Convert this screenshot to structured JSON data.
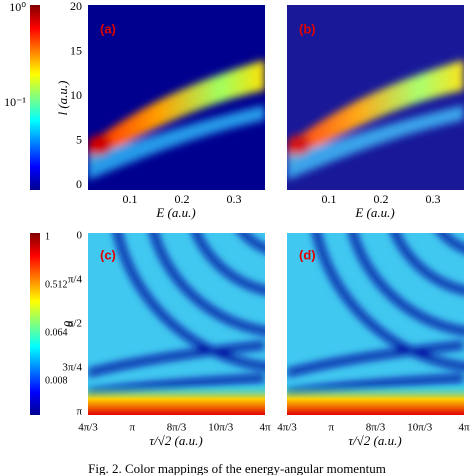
{
  "colorbars": [
    {
      "ticks": [
        "10⁰",
        "10⁻¹"
      ]
    },
    {
      "label": "θ",
      "ticks": [
        "1",
        "0.512",
        "0.064",
        "0.008"
      ]
    }
  ],
  "top_row": {
    "y_label": "l (a.u.)",
    "x_label": "E (a.u.)",
    "y_ticks": [
      "0",
      "5",
      "10",
      "15",
      "20"
    ],
    "x_ticks": [
      "0.1",
      "0.2",
      "0.3"
    ],
    "panels": [
      "(a)",
      "(b)"
    ]
  },
  "bottom_row": {
    "x_label": "τ/√2 (a.u.)",
    "y_ticks": [
      "0",
      "π/4",
      "π/2",
      "3π/4",
      "π"
    ],
    "x_ticks": [
      "4π/3",
      "π",
      "8π/3",
      "10π/3",
      "4π"
    ],
    "panels": [
      "(c)",
      "(d)"
    ]
  },
  "caption": "Fig. 2. Color mappings of the energy-angular momentum"
}
